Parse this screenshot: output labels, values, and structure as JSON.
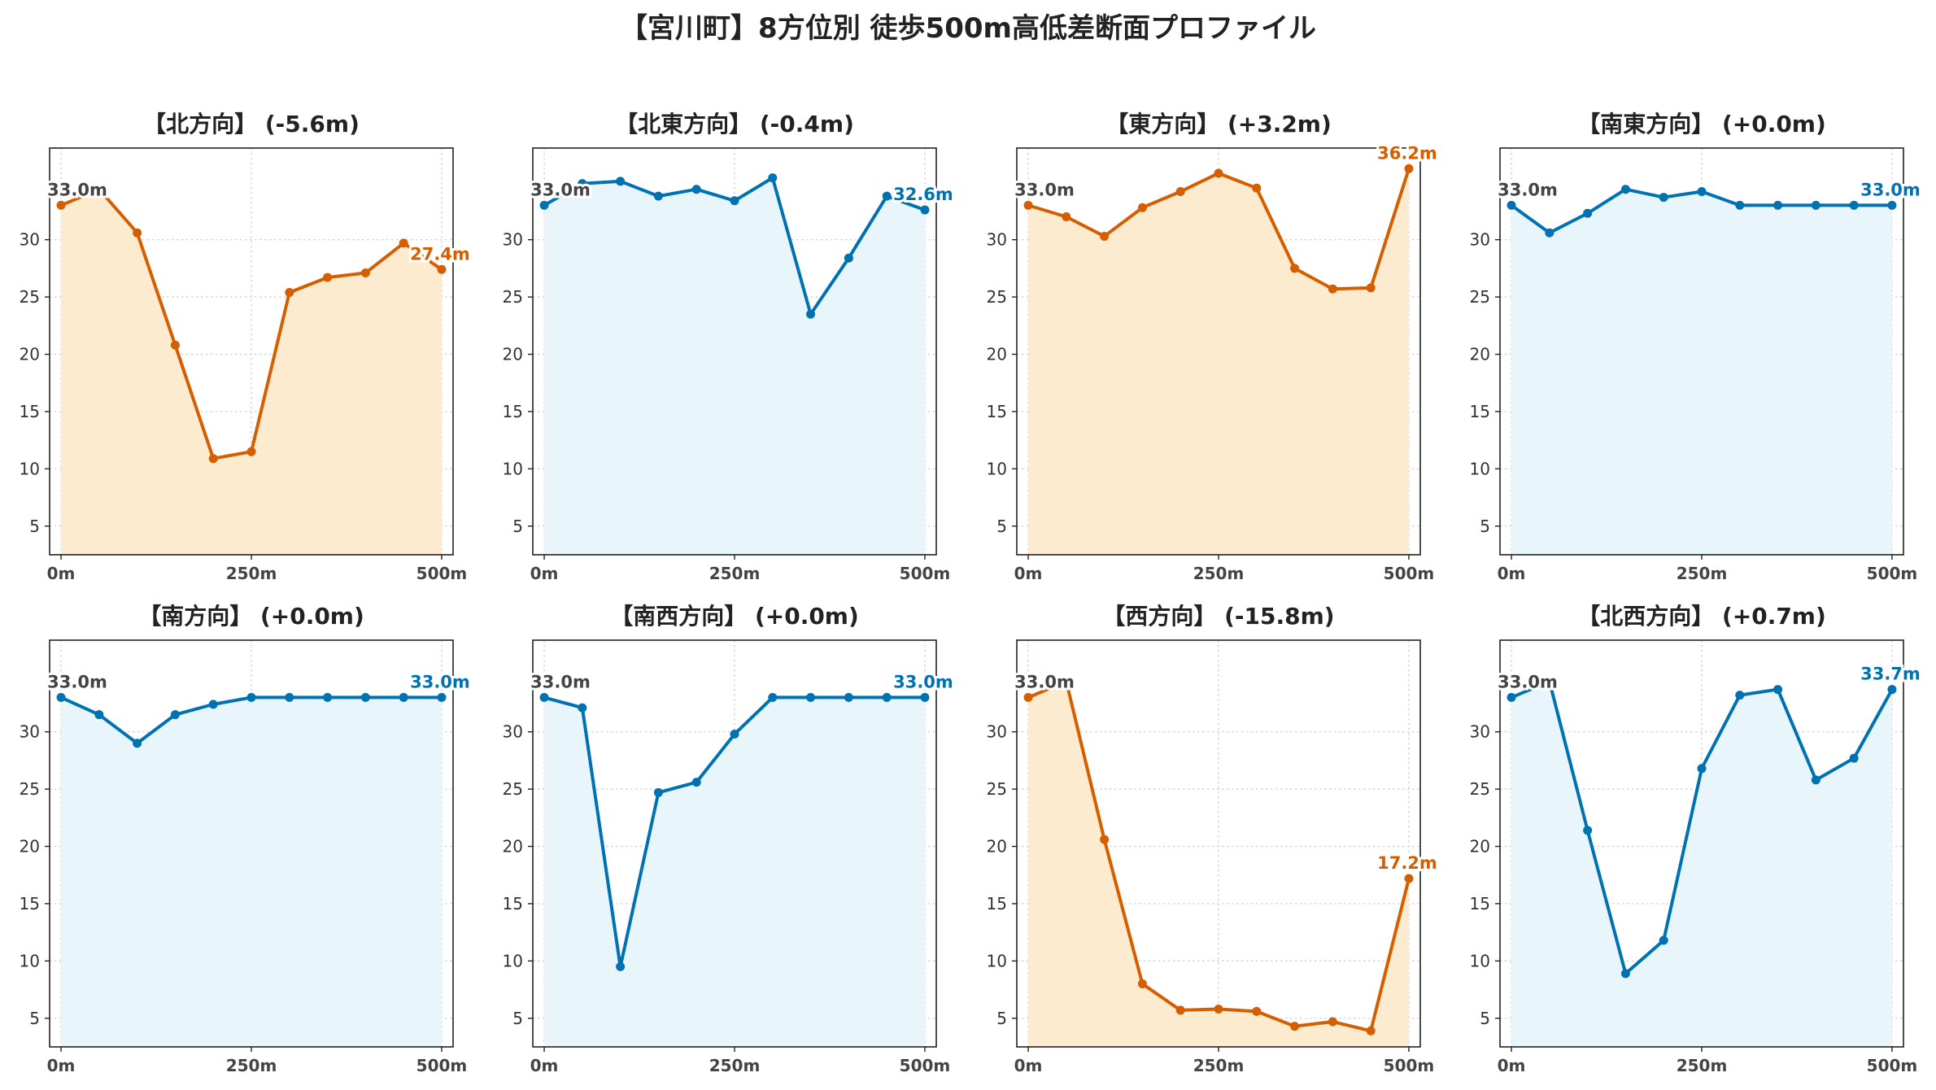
{
  "title": "【宮川町】8方位別 徒歩500m高低差断面プロファイル",
  "colors": {
    "up_line": "#0072b2",
    "up_fill": "#e8f6fc",
    "down_line": "#d55e00",
    "down_fill": "#fdebd0",
    "start_label": "#444444",
    "grid": "#cccccc"
  },
  "chart_data": [
    {
      "type": "area",
      "title": "【北方向】 (-5.6m)",
      "trend": "down",
      "x": [
        0,
        50,
        100,
        150,
        200,
        250,
        300,
        350,
        400,
        450,
        500
      ],
      "values": [
        33.0,
        34.4,
        30.6,
        20.8,
        10.9,
        11.5,
        25.4,
        26.7,
        27.1,
        29.7,
        27.4
      ],
      "start_label": "33.0m",
      "end_label": "27.4m",
      "xticks": [
        "0m",
        "250m",
        "500m"
      ],
      "xtick_values": [
        0,
        250,
        500
      ],
      "yticks": [
        5,
        10,
        15,
        20,
        25,
        30
      ],
      "ylim": [
        2.5,
        38
      ],
      "xlim": [
        -15,
        515
      ],
      "grid": true
    },
    {
      "type": "area",
      "title": "【北東方向】 (-0.4m)",
      "trend": "up",
      "x": [
        0,
        50,
        100,
        150,
        200,
        250,
        300,
        350,
        400,
        450,
        500
      ],
      "values": [
        33.0,
        34.9,
        35.1,
        33.8,
        34.4,
        33.4,
        35.4,
        23.5,
        28.4,
        33.8,
        32.6
      ],
      "start_label": "33.0m",
      "end_label": "32.6m",
      "xticks": [
        "0m",
        "250m",
        "500m"
      ],
      "xtick_values": [
        0,
        250,
        500
      ],
      "yticks": [
        5,
        10,
        15,
        20,
        25,
        30
      ],
      "ylim": [
        2.5,
        38
      ],
      "xlim": [
        -15,
        515
      ],
      "grid": true
    },
    {
      "type": "area",
      "title": "【東方向】 (+3.2m)",
      "trend": "down",
      "x": [
        0,
        50,
        100,
        150,
        200,
        250,
        300,
        350,
        400,
        450,
        500
      ],
      "values": [
        33.0,
        32.0,
        30.3,
        32.8,
        34.2,
        35.8,
        34.5,
        27.5,
        25.7,
        25.8,
        36.2
      ],
      "start_label": "33.0m",
      "end_label": "36.2m",
      "xticks": [
        "0m",
        "250m",
        "500m"
      ],
      "xtick_values": [
        0,
        250,
        500
      ],
      "yticks": [
        5,
        10,
        15,
        20,
        25,
        30
      ],
      "ylim": [
        2.5,
        38
      ],
      "xlim": [
        -15,
        515
      ],
      "grid": true
    },
    {
      "type": "area",
      "title": "【南東方向】 (+0.0m)",
      "trend": "up",
      "x": [
        0,
        50,
        100,
        150,
        200,
        250,
        300,
        350,
        400,
        450,
        500
      ],
      "values": [
        33.0,
        30.6,
        32.3,
        34.4,
        33.7,
        34.2,
        33.0,
        33.0,
        33.0,
        33.0,
        33.0
      ],
      "start_label": "33.0m",
      "end_label": "33.0m",
      "xticks": [
        "0m",
        "250m",
        "500m"
      ],
      "xtick_values": [
        0,
        250,
        500
      ],
      "yticks": [
        5,
        10,
        15,
        20,
        25,
        30
      ],
      "ylim": [
        2.5,
        38
      ],
      "xlim": [
        -15,
        515
      ],
      "grid": true
    },
    {
      "type": "area",
      "title": "【南方向】 (+0.0m)",
      "trend": "up",
      "x": [
        0,
        50,
        100,
        150,
        200,
        250,
        300,
        350,
        400,
        450,
        500
      ],
      "values": [
        33.0,
        31.5,
        29.0,
        31.5,
        32.4,
        33.0,
        33.0,
        33.0,
        33.0,
        33.0,
        33.0
      ],
      "start_label": "33.0m",
      "end_label": "33.0m",
      "xticks": [
        "0m",
        "250m",
        "500m"
      ],
      "xtick_values": [
        0,
        250,
        500
      ],
      "yticks": [
        5,
        10,
        15,
        20,
        25,
        30
      ],
      "ylim": [
        2.5,
        38
      ],
      "xlim": [
        -15,
        515
      ],
      "grid": true
    },
    {
      "type": "area",
      "title": "【南西方向】 (+0.0m)",
      "trend": "up",
      "x": [
        0,
        50,
        100,
        150,
        200,
        250,
        300,
        350,
        400,
        450,
        500
      ],
      "values": [
        33.0,
        32.1,
        9.5,
        24.7,
        25.6,
        29.8,
        33.0,
        33.0,
        33.0,
        33.0,
        33.0
      ],
      "start_label": "33.0m",
      "end_label": "33.0m",
      "xticks": [
        "0m",
        "250m",
        "500m"
      ],
      "xtick_values": [
        0,
        250,
        500
      ],
      "yticks": [
        5,
        10,
        15,
        20,
        25,
        30
      ],
      "ylim": [
        2.5,
        38
      ],
      "xlim": [
        -15,
        515
      ],
      "grid": true
    },
    {
      "type": "area",
      "title": "【西方向】 (-15.8m)",
      "trend": "down",
      "x": [
        0,
        50,
        100,
        150,
        200,
        250,
        300,
        350,
        400,
        450,
        500
      ],
      "values": [
        33.0,
        34.4,
        20.6,
        8.0,
        5.7,
        5.8,
        5.6,
        4.3,
        4.7,
        3.9,
        17.2
      ],
      "start_label": "33.0m",
      "end_label": "17.2m",
      "xticks": [
        "0m",
        "250m",
        "500m"
      ],
      "xtick_values": [
        0,
        250,
        500
      ],
      "yticks": [
        5,
        10,
        15,
        20,
        25,
        30
      ],
      "ylim": [
        2.5,
        38
      ],
      "xlim": [
        -15,
        515
      ],
      "grid": true
    },
    {
      "type": "area",
      "title": "【北西方向】 (+0.7m)",
      "trend": "up",
      "x": [
        0,
        50,
        100,
        150,
        200,
        250,
        300,
        350,
        400,
        450,
        500
      ],
      "values": [
        33.0,
        34.4,
        21.4,
        8.9,
        11.8,
        26.8,
        33.2,
        33.7,
        25.8,
        27.7,
        33.7
      ],
      "start_label": "33.0m",
      "end_label": "33.7m",
      "xticks": [
        "0m",
        "250m",
        "500m"
      ],
      "xtick_values": [
        0,
        250,
        500
      ],
      "yticks": [
        5,
        10,
        15,
        20,
        25,
        30
      ],
      "ylim": [
        2.5,
        38
      ],
      "xlim": [
        -15,
        515
      ],
      "grid": true
    }
  ]
}
